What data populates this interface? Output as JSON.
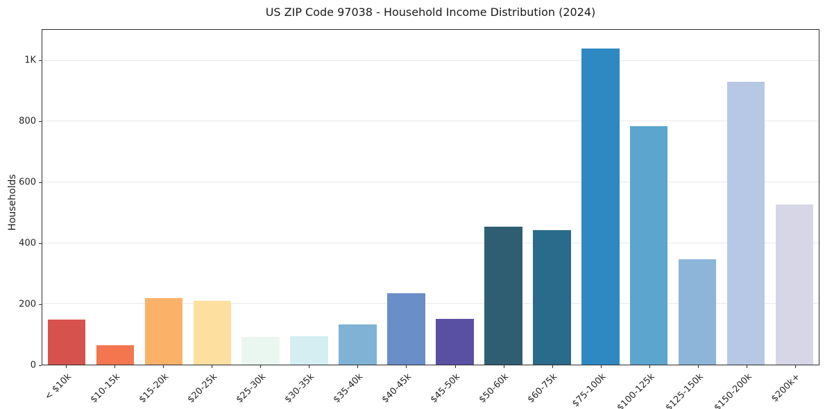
{
  "chart_data": {
    "type": "bar",
    "title": "US ZIP Code 97038 - Household Income Distribution (2024)",
    "xlabel": "",
    "ylabel": "Households",
    "categories": [
      "< $10k",
      "$10-15k",
      "$15-20k",
      "$20-25k",
      "$25-30k",
      "$30-35k",
      "$35-40k",
      "$40-45k",
      "$45-50k",
      "$50-60k",
      "$60-75k",
      "$75-100k",
      "$100-125k",
      "$125-150k",
      "$150-200k",
      "$200k+"
    ],
    "values": [
      148,
      64,
      218,
      209,
      91,
      93,
      132,
      236,
      150,
      455,
      442,
      1040,
      786,
      347,
      930,
      528
    ],
    "colors": [
      "#d6534d",
      "#f3764f",
      "#fbb268",
      "#fde0a0",
      "#eaf7f1",
      "#d4eef2",
      "#7fb2d5",
      "#6a8ec8",
      "#5a50a3",
      "#2f5e72",
      "#2a6a8a",
      "#2e89c3",
      "#5ba5ce",
      "#8db5d9",
      "#b7c8e4",
      "#d7d6e6"
    ],
    "ylim": [
      0,
      1102
    ],
    "yticks": [
      {
        "value": 0,
        "label": "0"
      },
      {
        "value": 200,
        "label": "200"
      },
      {
        "value": 400,
        "label": "400"
      },
      {
        "value": 600,
        "label": "600"
      },
      {
        "value": 800,
        "label": "800"
      },
      {
        "value": 1000,
        "label": "1K"
      }
    ],
    "grid": "horizontal",
    "legend": "none",
    "background": "#ffffff"
  }
}
